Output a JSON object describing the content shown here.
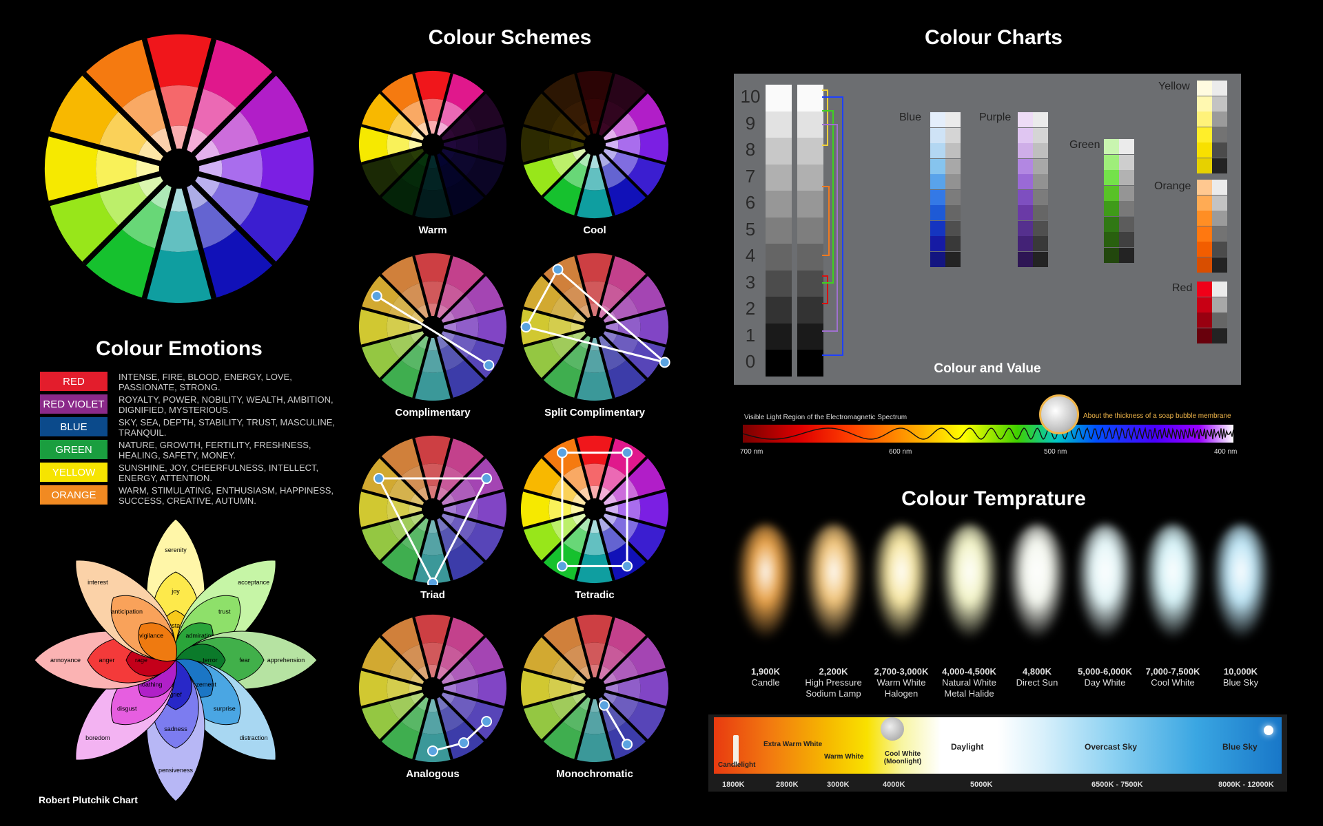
{
  "headings": {
    "schemes": "Colour Schemes",
    "charts": "Colour Charts",
    "emotions": "Colour Emotions",
    "temperature": "Colour Temprature",
    "plutchik": "Robert Plutchik Chart",
    "colour_value": "Colour and Value"
  },
  "scheme_labels": [
    "Warm",
    "Cool",
    "Complimentary",
    "Split Complimentary",
    "Triad",
    "Tetradic",
    "Analogous",
    "Monochromatic"
  ],
  "emotions": [
    {
      "name": "RED",
      "color": "#e31d2c",
      "desc": "INTENSE, FIRE, BLOOD, ENERGY, LOVE, PASSIONATE, STRONG."
    },
    {
      "name": "RED VIOLET",
      "color": "#8b2a8a",
      "desc": "ROYALTY, POWER, NOBILITY, WEALTH, AMBITION, DIGNIFIED, MYSTERIOUS."
    },
    {
      "name": "BLUE",
      "color": "#0b4a8b",
      "desc": "SKY, SEA, DEPTH, STABILITY, TRUST, MASCULINE, TRANQUIL."
    },
    {
      "name": "GREEN",
      "color": "#1a9e3f",
      "desc": "NATURE, GROWTH, FERTILITY, FRESHNESS, HEALING, SAFETY, MONEY."
    },
    {
      "name": "YELLOW",
      "color": "#f6e400",
      "desc": "SUNSHINE, JOY, CHEERFULNESS, INTELLECT, ENERGY, ATTENTION."
    },
    {
      "name": "ORANGE",
      "color": "#f18a22",
      "desc": "WARM, STIMULATING, ENTHUSIASM, HAPPINESS, SUCCESS, CREATIVE, AUTUMN."
    }
  ],
  "plutchik": {
    "petals": [
      {
        "outer": "serenity",
        "mid": "joy",
        "inner": "ecstasy"
      },
      {
        "outer": "acceptance",
        "mid": "trust",
        "inner": "admiration"
      },
      {
        "outer": "apprehension",
        "mid": "fear",
        "inner": "terror"
      },
      {
        "outer": "distraction",
        "mid": "surprise",
        "inner": "amazement"
      },
      {
        "outer": "pensiveness",
        "mid": "sadness",
        "inner": "grief"
      },
      {
        "outer": "boredom",
        "mid": "disgust",
        "inner": "loathing"
      },
      {
        "outer": "annoyance",
        "mid": "anger",
        "inner": "rage"
      },
      {
        "outer": "interest",
        "mid": "anticipation",
        "inner": "vigilance"
      }
    ]
  },
  "value_scale": [
    "10",
    "9",
    "8",
    "7",
    "6",
    "5",
    "4",
    "3",
    "2",
    "1",
    "0"
  ],
  "chart_labels": {
    "blue": "Blue",
    "purple": "Purple",
    "green": "Green",
    "yellow": "Yellow",
    "orange": "Orange",
    "red": "Red"
  },
  "spectrum": {
    "title": "Visible Light Region of the Electromagnetic Spectrum",
    "note": "About the thickness of a soap bubble membrane",
    "ticks": [
      "700 nm",
      "600 nm",
      "500 nm",
      "400 nm"
    ]
  },
  "temperatures": [
    {
      "k": "1,900K",
      "name": "Candle",
      "color": "#e8a24a"
    },
    {
      "k": "2,200K",
      "name": "High Pressure Sodium Lamp",
      "color": "#f1c47a"
    },
    {
      "k": "2,700-3,000K",
      "name": "Warm White Halogen",
      "color": "#f7e7a4"
    },
    {
      "k": "4,000-4,500K",
      "name": "Natural White Metal Halide",
      "color": "#f3f4c8"
    },
    {
      "k": "4,800K",
      "name": "Direct Sun",
      "color": "#f4f7ef"
    },
    {
      "k": "5,000-6,000K",
      "name": "Day White",
      "color": "#e4f6f8"
    },
    {
      "k": "7,000-7,500K",
      "name": "Cool White",
      "color": "#d6f3f8"
    },
    {
      "k": "10,000K",
      "name": "Blue Sky",
      "color": "#bfe6f6"
    }
  ],
  "kelvin_bar": {
    "labels": [
      "Candlelight",
      "Extra Warm White",
      "Warm White",
      "Cool White (Moonlight)",
      "Daylight",
      "Overcast Sky",
      "Blue Sky"
    ],
    "ticks": [
      "1800K",
      "2800K",
      "3000K",
      "4000K",
      "5000K",
      "6500K - 7500K",
      "8000K - 12000K"
    ]
  }
}
